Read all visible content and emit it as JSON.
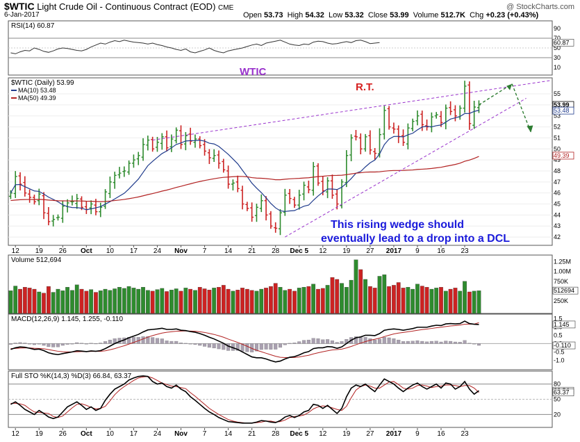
{
  "header": {
    "symbol": "$WTIC",
    "name": "Light Crude Oil - Continuous Contract (EOD)",
    "exchange": "CME",
    "date": "6-Jan-2017",
    "watermark": "@ StockCharts.com",
    "open_label": "Open",
    "open": "53.73",
    "high_label": "High",
    "high": "54.32",
    "low_label": "Low",
    "low": "53.32",
    "close_label": "Close",
    "close": "53.99",
    "volume_label": "Volume",
    "volume": "512.7K",
    "chg_label": "Chg",
    "chg": "+0.23 (+0.43%)"
  },
  "colors": {
    "up": "#2e8b2e",
    "down": "#cc2222",
    "ma10": "#1f3b8c",
    "ma50": "#b22222",
    "wedge": "#9932cc",
    "arrow": "#2e7d32",
    "annotation_blue": "#1a1adb",
    "annotation_red": "#d62020"
  },
  "chart_data": [
    {
      "type": "line",
      "panel": "rsi",
      "legend": "RSI(14) 60.87",
      "last_value": "60.87",
      "ylim": [
        0,
        100
      ],
      "y_ticks": [
        "90",
        "70",
        "50",
        "30",
        "10"
      ],
      "reference_lines": [
        70,
        30
      ],
      "values": [
        40,
        38,
        42,
        45,
        44,
        50,
        47,
        43,
        41,
        44,
        48,
        50,
        49,
        47,
        45,
        44,
        47,
        52,
        56,
        60,
        58,
        62,
        65,
        63,
        66,
        64,
        62,
        61,
        60,
        58,
        60,
        57,
        55,
        52,
        50,
        47,
        45,
        48,
        42,
        40,
        43,
        46,
        50,
        45,
        42,
        40,
        44,
        46,
        48,
        50,
        53,
        56,
        58,
        55,
        60,
        62,
        64,
        66,
        62,
        58,
        56,
        55,
        58,
        57,
        62,
        64,
        63,
        60,
        58,
        59,
        61,
        63,
        61,
        65,
        66,
        63,
        59,
        60,
        61
      ]
    },
    {
      "type": "candlestick",
      "panel": "price",
      "legend": "$WTIC (Daily) 53.99",
      "series_legend": [
        {
          "name": "MA(10) 53.48",
          "color": "#1f3b8c"
        },
        {
          "name": "MA(50) 49.39",
          "color": "#b22222"
        }
      ],
      "last_value": "53.99",
      "ma10_last": "53.48",
      "ma50_last": "49.39",
      "ylim": [
        41.5,
        56.2
      ],
      "y_ticks": [
        "55",
        "54",
        "53",
        "52",
        "51",
        "50",
        "49",
        "48",
        "47",
        "46",
        "45",
        "44",
        "43",
        "42"
      ],
      "x_tick_labels": [
        "12",
        "19",
        "26",
        "Oct",
        "10",
        "17",
        "24",
        "Nov",
        "7",
        "14",
        "21",
        "28",
        "Dec 5",
        "12",
        "19",
        "27",
        "2017",
        "9",
        "16",
        "23"
      ],
      "close": [
        46.0,
        47.5,
        46.8,
        46.0,
        45.6,
        45.2,
        45.9,
        44.2,
        43.4,
        43.6,
        43.8,
        44.8,
        45.1,
        45.2,
        45.5,
        44.7,
        44.5,
        45.0,
        44.3,
        44.7,
        46.1,
        47.0,
        47.6,
        47.8,
        48.0,
        48.7,
        49.0,
        49.4,
        50.4,
        50.8,
        50.0,
        50.6,
        51.1,
        50.1,
        50.9,
        51.7,
        50.4,
        51.2,
        50.7,
        50.9,
        50.3,
        49.8,
        49.2,
        49.4,
        48.7,
        48.1,
        46.8,
        46.9,
        46.4,
        45.0,
        44.6,
        43.8,
        44.7,
        45.3,
        44.0,
        43.0,
        42.8,
        44.2,
        45.8,
        45.5,
        44.9,
        45.8,
        46.7,
        46.3,
        48.4,
        46.9,
        46.2,
        47.1,
        45.8,
        45.0,
        47.0,
        49.4,
        51.0,
        51.1,
        50.0,
        51.1,
        49.9,
        49.6,
        51.3,
        53.5,
        52.0,
        51.8,
        51.1,
        50.6,
        51.9,
        52.5,
        53.0,
        52.2,
        52.0,
        52.9,
        53.1,
        52.4,
        53.7,
        53.4,
        53.0,
        53.7,
        55.7,
        52.3,
        53.8,
        54.0
      ],
      "wedge_upper": [
        [
          50.8,
          60
        ],
        [
          56.2,
          115
        ]
      ],
      "wedge_lower": [
        [
          42.0,
          58
        ],
        [
          54.6,
          110
        ]
      ],
      "projection_peak": 55.9,
      "projection_target": 51.5
    },
    {
      "type": "bar",
      "panel": "volume",
      "legend": "Volume 512,694",
      "last_value": "512694",
      "ylim": [
        0,
        1.35
      ],
      "y_ticks": [
        "1.25M",
        "1.00M",
        "750K",
        "500K",
        "250K"
      ],
      "values": [
        0.51,
        0.63,
        0.55,
        0.6,
        0.58,
        0.55,
        0.48,
        0.45,
        0.62,
        0.47,
        0.55,
        0.51,
        0.6,
        0.52,
        0.66,
        0.55,
        0.5,
        0.54,
        0.47,
        0.51,
        0.55,
        0.52,
        0.56,
        0.6,
        0.57,
        0.62,
        0.58,
        0.55,
        0.6,
        0.52,
        0.5,
        0.54,
        0.57,
        0.49,
        0.53,
        0.56,
        0.5,
        0.58,
        0.55,
        0.52,
        0.6,
        0.56,
        0.53,
        0.58,
        0.6,
        0.65,
        0.55,
        0.5,
        0.53,
        0.58,
        0.55,
        0.52,
        0.5,
        0.55,
        0.58,
        0.62,
        0.7,
        0.6,
        0.52,
        0.55,
        0.5,
        0.58,
        0.6,
        0.62,
        0.68,
        0.55,
        0.57,
        0.65,
        0.85,
        0.8,
        0.7,
        0.6,
        0.78,
        1.3,
        1.05,
        0.8,
        0.62,
        0.58,
        0.88,
        0.92,
        0.62,
        0.65,
        0.72,
        0.58,
        0.6,
        0.55,
        0.68,
        0.63,
        0.6,
        0.55,
        0.58,
        0.6,
        0.5,
        0.55,
        0.58,
        0.5,
        0.75,
        0.48,
        0.5,
        0.51
      ],
      "up": [
        1,
        1,
        0,
        0,
        0,
        0,
        1,
        0,
        0,
        1,
        1,
        1,
        1,
        1,
        1,
        0,
        0,
        1,
        0,
        1,
        1,
        1,
        1,
        1,
        1,
        1,
        1,
        1,
        1,
        1,
        0,
        1,
        1,
        0,
        1,
        1,
        0,
        1,
        0,
        1,
        0,
        0,
        0,
        1,
        0,
        0,
        0,
        1,
        0,
        0,
        0,
        0,
        1,
        1,
        0,
        0,
        0,
        1,
        1,
        0,
        0,
        1,
        1,
        0,
        1,
        0,
        0,
        1,
        0,
        0,
        1,
        1,
        1,
        1,
        0,
        1,
        0,
        0,
        1,
        1,
        0,
        0,
        0,
        0,
        1,
        1,
        1,
        0,
        0,
        1,
        1,
        0,
        1,
        0,
        0,
        1,
        1,
        0,
        1,
        1
      ]
    },
    {
      "type": "line",
      "panel": "macd",
      "legend": "MACD(12,26,9) 1.145, 1.255, -0.110",
      "last_value": "1.145",
      "signal_last": "1.255",
      "hist_last": "-0.110",
      "y_ticks": [
        "1.5",
        "1.0",
        "0.5",
        "0.0",
        "-0.5",
        "-1.0"
      ],
      "ylim": [
        -1.4,
        1.6
      ],
      "macd": [
        -0.35,
        -0.25,
        -0.2,
        -0.22,
        -0.28,
        -0.35,
        -0.33,
        -0.42,
        -0.55,
        -0.62,
        -0.66,
        -0.6,
        -0.55,
        -0.5,
        -0.43,
        -0.45,
        -0.48,
        -0.44,
        -0.46,
        -0.42,
        -0.3,
        -0.15,
        0.0,
        0.12,
        0.22,
        0.35,
        0.45,
        0.55,
        0.7,
        0.82,
        0.85,
        0.88,
        0.92,
        0.85,
        0.85,
        0.88,
        0.8,
        0.78,
        0.72,
        0.68,
        0.6,
        0.5,
        0.38,
        0.28,
        0.15,
        0.02,
        -0.15,
        -0.25,
        -0.35,
        -0.5,
        -0.65,
        -0.8,
        -0.85,
        -0.85,
        -0.92,
        -1.02,
        -1.1,
        -1.05,
        -0.92,
        -0.82,
        -0.78,
        -0.68,
        -0.55,
        -0.48,
        -0.3,
        -0.25,
        -0.25,
        -0.18,
        -0.2,
        -0.28,
        -0.2,
        0.0,
        0.2,
        0.35,
        0.4,
        0.5,
        0.5,
        0.48,
        0.6,
        0.8,
        0.85,
        0.88,
        0.85,
        0.8,
        0.85,
        0.9,
        0.98,
        0.98,
        0.98,
        1.05,
        1.1,
        1.08,
        1.18,
        1.2,
        1.18,
        1.2,
        1.35,
        1.2,
        1.16,
        1.145
      ],
      "signal": [
        -0.3,
        -0.29,
        -0.27,
        -0.26,
        -0.26,
        -0.28,
        -0.29,
        -0.31,
        -0.36,
        -0.41,
        -0.46,
        -0.49,
        -0.5,
        -0.5,
        -0.49,
        -0.48,
        -0.48,
        -0.47,
        -0.47,
        -0.46,
        -0.43,
        -0.37,
        -0.3,
        -0.21,
        -0.13,
        -0.03,
        0.07,
        0.17,
        0.28,
        0.39,
        0.48,
        0.56,
        0.63,
        0.68,
        0.71,
        0.74,
        0.75,
        0.76,
        0.75,
        0.74,
        0.71,
        0.67,
        0.61,
        0.55,
        0.47,
        0.38,
        0.27,
        0.17,
        0.07,
        -0.04,
        -0.16,
        -0.29,
        -0.4,
        -0.49,
        -0.58,
        -0.67,
        -0.76,
        -0.82,
        -0.84,
        -0.84,
        -0.83,
        -0.8,
        -0.75,
        -0.7,
        -0.62,
        -0.55,
        -0.49,
        -0.43,
        -0.38,
        -0.36,
        -0.33,
        -0.26,
        -0.17,
        -0.07,
        0.03,
        0.12,
        0.2,
        0.26,
        0.33,
        0.42,
        0.5,
        0.58,
        0.63,
        0.67,
        0.71,
        0.75,
        0.8,
        0.84,
        0.87,
        0.91,
        0.95,
        0.98,
        1.02,
        1.06,
        1.08,
        1.11,
        1.16,
        1.17,
        1.17,
        1.255
      ]
    },
    {
      "type": "line",
      "panel": "stochastic",
      "legend": "Full STO %K(14,3) %D(3) 66.84, 63.37",
      "k_last": "66.84",
      "d_last": "63.37",
      "ylim": [
        0,
        100
      ],
      "y_ticks": [
        "80",
        "50",
        "20"
      ],
      "reference_lines": [
        80,
        20
      ],
      "k": [
        40,
        45,
        38,
        30,
        25,
        20,
        28,
        22,
        15,
        12,
        15,
        25,
        35,
        40,
        45,
        38,
        30,
        35,
        28,
        32,
        48,
        60,
        70,
        75,
        80,
        88,
        92,
        95,
        96,
        95,
        85,
        80,
        82,
        75,
        72,
        78,
        70,
        65,
        55,
        48,
        40,
        32,
        25,
        20,
        14,
        10,
        6,
        5,
        4,
        3,
        3,
        3,
        5,
        8,
        7,
        5,
        4,
        8,
        15,
        18,
        14,
        18,
        25,
        28,
        40,
        38,
        32,
        38,
        30,
        22,
        32,
        55,
        72,
        78,
        75,
        80,
        72,
        65,
        78,
        90,
        85,
        80,
        72,
        65,
        72,
        78,
        82,
        75,
        70,
        75,
        80,
        72,
        82,
        80,
        70,
        75,
        85,
        70,
        60,
        66.84
      ],
      "d": [
        42,
        42,
        41,
        38,
        31,
        25,
        24,
        23,
        22,
        16,
        14,
        17,
        25,
        33,
        40,
        41,
        38,
        34,
        31,
        32,
        36,
        47,
        59,
        68,
        75,
        81,
        87,
        92,
        94,
        95,
        92,
        87,
        82,
        79,
        76,
        75,
        73,
        71,
        63,
        56,
        48,
        40,
        32,
        26,
        20,
        15,
        10,
        7,
        5,
        4,
        3,
        3,
        4,
        5,
        7,
        7,
        5,
        6,
        9,
        14,
        16,
        17,
        19,
        24,
        31,
        35,
        37,
        36,
        33,
        30,
        28,
        36,
        53,
        68,
        75,
        78,
        76,
        72,
        72,
        78,
        84,
        85,
        79,
        72,
        70,
        72,
        77,
        78,
        76,
        73,
        75,
        76,
        78,
        78,
        77,
        75,
        77,
        77,
        72,
        63.37
      ]
    }
  ],
  "annotations": {
    "wtic_label": "WTIC",
    "rt_label": "R.T.",
    "note_line1": "This rising wedge should",
    "note_line2": "eventually lead to a drop into a DCL"
  }
}
